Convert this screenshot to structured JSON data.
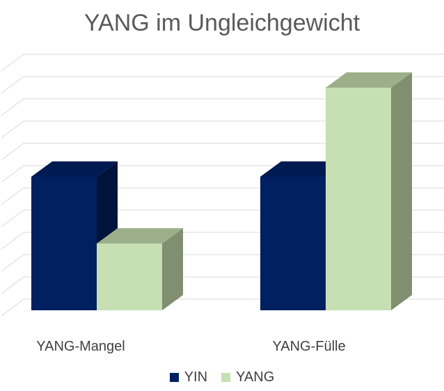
{
  "chart_data": {
    "type": "bar",
    "title": "YANG im Ungleichgewicht",
    "xlabel": "",
    "ylabel": "",
    "categories": [
      "YANG-Mangel",
      "YANG-Fülle"
    ],
    "series": [
      {
        "name": "YIN",
        "values": [
          6,
          6
        ],
        "color": "#002060"
      },
      {
        "name": "YANG",
        "values": [
          3,
          10
        ],
        "color": "#c6e0b4"
      }
    ],
    "ylim": [
      0,
      11
    ],
    "grid": true,
    "legend": "bottom",
    "three_d": true
  }
}
